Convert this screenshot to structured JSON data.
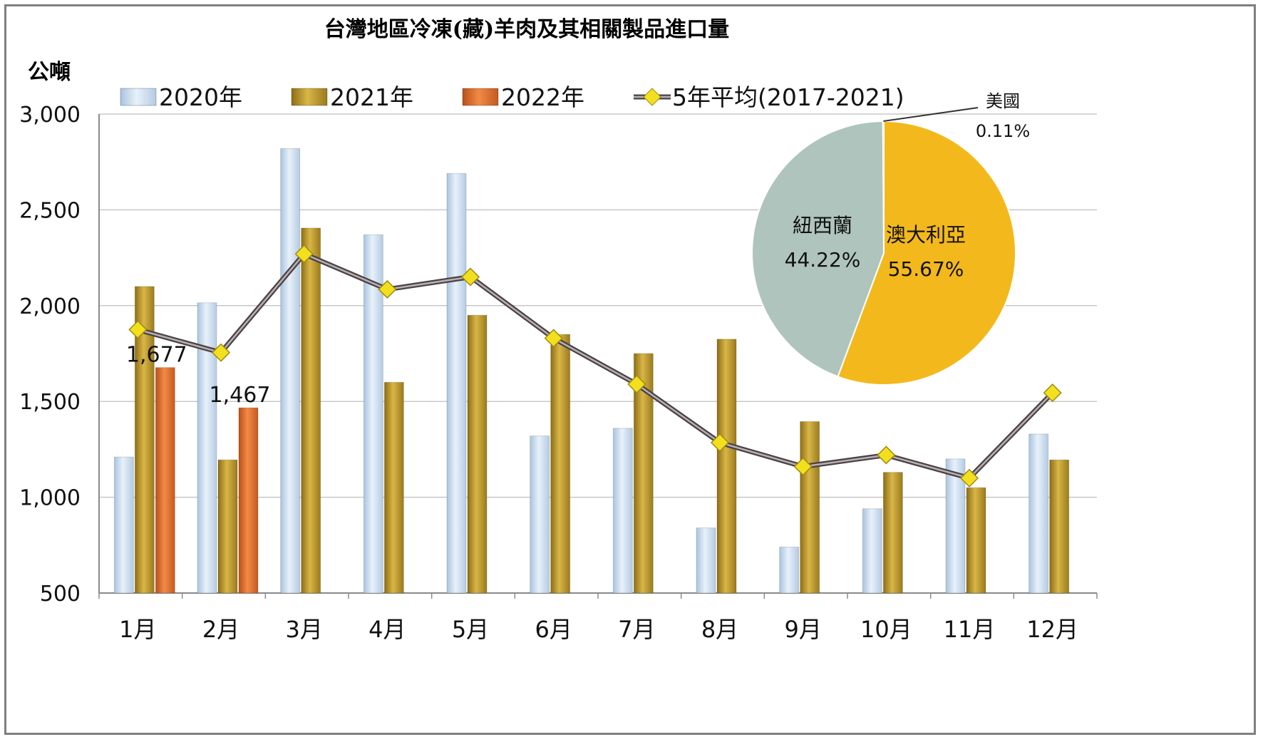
{
  "chart_data": [
    {
      "type": "bar+line",
      "title": "台灣地區冷凍(藏)羊肉及其相關製品進口量",
      "ylabel": "公噸",
      "ylim": [
        500,
        3000
      ],
      "yticks": [
        "500",
        "1,000",
        "1,500",
        "2,000",
        "2,500",
        "3,000"
      ],
      "ytick_values": [
        500,
        1000,
        1500,
        2000,
        2500,
        3000
      ],
      "categories": [
        "1月",
        "2月",
        "3月",
        "4月",
        "5月",
        "6月",
        "7月",
        "8月",
        "9月",
        "10月",
        "11月",
        "12月"
      ],
      "grid": "horizontal",
      "legend_position": "top",
      "series": [
        {
          "name": "2020年",
          "kind": "bar",
          "color": "#c6d9ec",
          "values": [
            1210,
            2015,
            2820,
            2370,
            2690,
            1320,
            1360,
            840,
            740,
            940,
            1200,
            1330
          ]
        },
        {
          "name": "2021年",
          "kind": "bar",
          "color": "#c09a2b",
          "values": [
            2100,
            1195,
            2405,
            1600,
            1950,
            1850,
            1750,
            1825,
            1395,
            1130,
            1050,
            1195
          ]
        },
        {
          "name": "2022年",
          "kind": "bar",
          "color": "#e5702a",
          "values": [
            1677,
            1467,
            null,
            null,
            null,
            null,
            null,
            null,
            null,
            null,
            null,
            null
          ]
        },
        {
          "name": "5年平均(2017-2021)",
          "kind": "line",
          "color": "#6d6265",
          "marker_color": "#f2e01f",
          "values": [
            1875,
            1755,
            2270,
            2085,
            2150,
            1830,
            1590,
            1285,
            1160,
            1220,
            1100,
            1545
          ]
        }
      ],
      "data_labels": [
        {
          "series": "2022年",
          "category": "1月",
          "text": "1,677"
        },
        {
          "series": "2022年",
          "category": "2月",
          "text": "1,467"
        }
      ]
    },
    {
      "type": "pie",
      "slices": [
        {
          "name": "澳大利亞",
          "value": 55.67,
          "label": "55.67%",
          "color": "#f3b91c"
        },
        {
          "name": "紐西蘭",
          "value": 44.22,
          "label": "44.22%",
          "color": "#aec4bc"
        },
        {
          "name": "美國",
          "value": 0.11,
          "label": "0.11%",
          "color": "#ffffff"
        }
      ]
    }
  ]
}
